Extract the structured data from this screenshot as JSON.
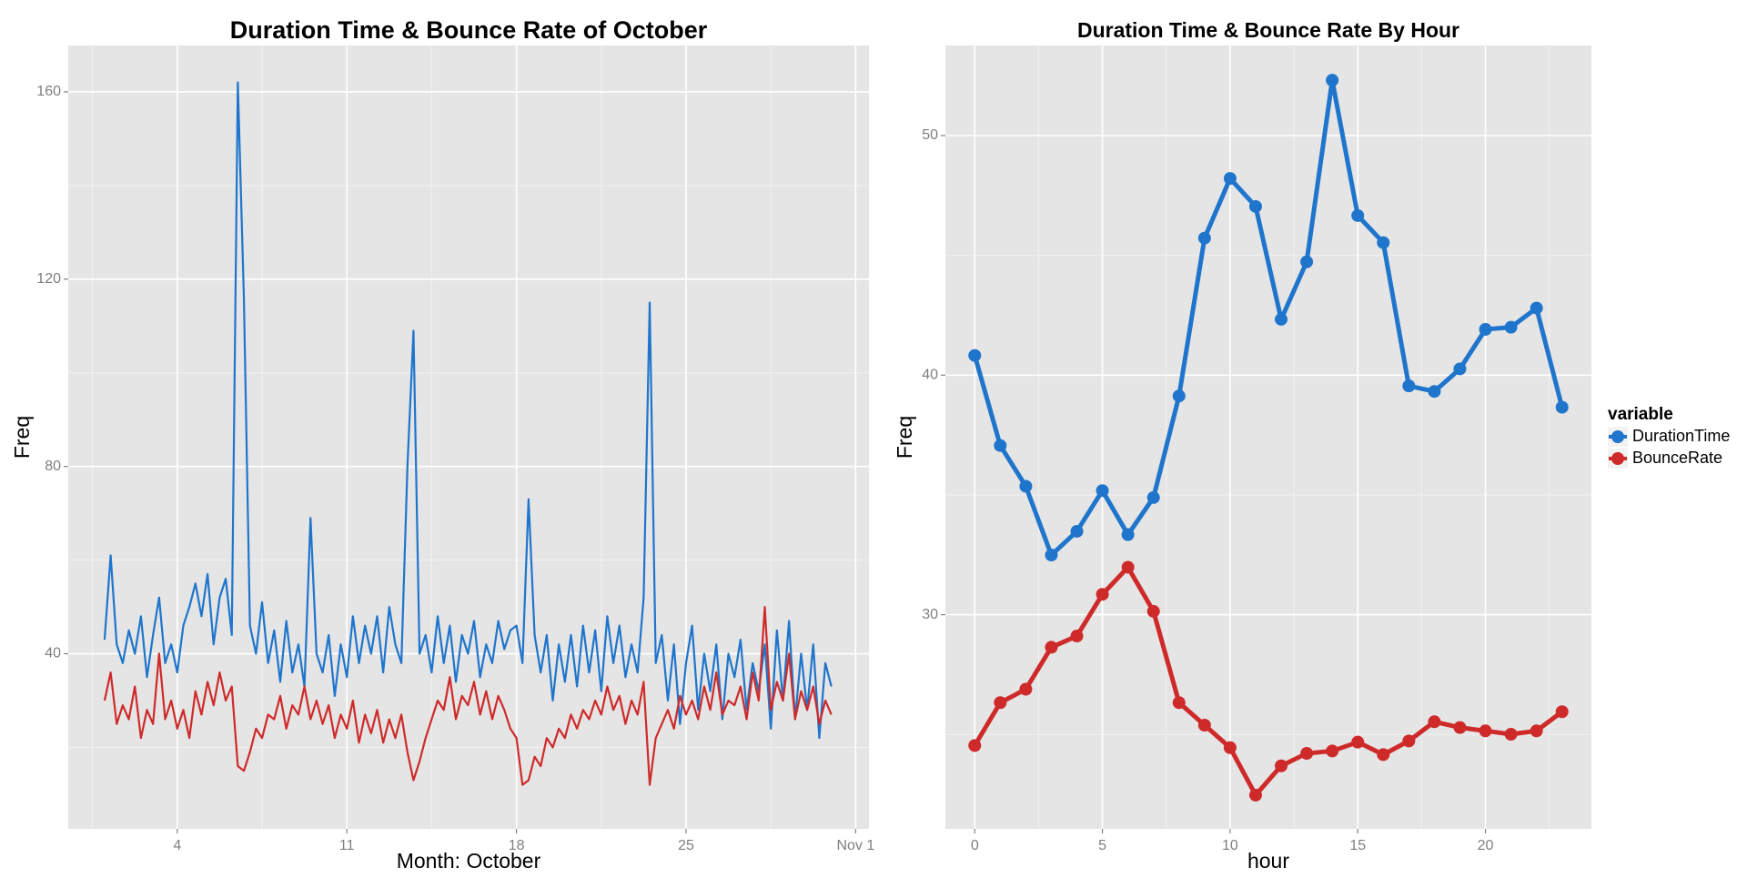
{
  "chart_data": [
    {
      "type": "line",
      "title": "Duration Time & Bounce Rate of October",
      "x_label": "Month: October",
      "y_label": "Freq",
      "xlim": [
        -0.5,
        32.55
      ],
      "xticks": [
        4,
        11,
        18,
        25,
        {
          "value": 32,
          "label": "Nov 1"
        }
      ],
      "x_minor_ticks": [
        0.5,
        7.5,
        14.5,
        21.5,
        28.5
      ],
      "ylim": [
        2.6,
        169.9
      ],
      "yticks": [
        40,
        80,
        120,
        160
      ],
      "y_minor_ticks": [
        20,
        60,
        100,
        140
      ],
      "grid": true,
      "legend": "none",
      "x": [
        1,
        1.25,
        1.5,
        1.75,
        2,
        2.25,
        2.5,
        2.75,
        3,
        3.25,
        3.5,
        3.75,
        4,
        4.25,
        4.5,
        4.75,
        5,
        5.25,
        5.5,
        5.75,
        6,
        6.25,
        6.5,
        6.75,
        7,
        7.25,
        7.5,
        7.75,
        8,
        8.25,
        8.5,
        8.75,
        9,
        9.25,
        9.5,
        9.75,
        10,
        10.25,
        10.5,
        10.75,
        11,
        11.25,
        11.5,
        11.75,
        12,
        12.25,
        12.5,
        12.75,
        13,
        13.25,
        13.5,
        13.75,
        14,
        14.25,
        14.5,
        14.75,
        15,
        15.25,
        15.5,
        15.75,
        16,
        16.25,
        16.5,
        16.75,
        17,
        17.25,
        17.5,
        17.75,
        18,
        18.25,
        18.5,
        18.75,
        19,
        19.25,
        19.5,
        19.75,
        20,
        20.25,
        20.5,
        20.75,
        21,
        21.25,
        21.5,
        21.75,
        22,
        22.25,
        22.5,
        22.75,
        23,
        23.25,
        23.5,
        23.75,
        24,
        24.25,
        24.5,
        24.75,
        25,
        25.25,
        25.5,
        25.75,
        26,
        26.25,
        26.5,
        26.75,
        27,
        27.25,
        27.5,
        27.75,
        28,
        28.25,
        28.5,
        28.75,
        29,
        29.25,
        29.5,
        29.75,
        30,
        30.25,
        30.5,
        30.75,
        31
      ],
      "series": [
        {
          "name": "DurationTime",
          "color": "#1f75cc",
          "values": [
            43,
            61,
            42,
            38,
            45,
            40,
            48,
            35,
            44,
            52,
            38,
            42,
            36,
            46,
            50,
            55,
            48,
            57,
            42,
            52,
            56,
            44,
            162,
            116,
            46,
            40,
            51,
            38,
            45,
            34,
            47,
            36,
            42,
            33,
            69,
            40,
            36,
            44,
            31,
            42,
            35,
            48,
            38,
            46,
            40,
            48,
            36,
            50,
            42,
            38,
            80,
            109,
            40,
            44,
            36,
            48,
            38,
            46,
            34,
            44,
            40,
            47,
            35,
            42,
            38,
            47,
            41,
            45,
            46,
            38,
            73,
            44,
            36,
            44,
            30,
            42,
            34,
            44,
            33,
            46,
            36,
            45,
            32,
            48,
            38,
            46,
            35,
            42,
            36,
            52,
            115,
            38,
            44,
            30,
            42,
            25,
            38,
            46,
            28,
            40,
            32,
            42,
            26,
            40,
            35,
            43,
            28,
            38,
            32,
            42,
            24,
            45,
            30,
            47,
            26,
            40,
            28,
            42,
            22,
            38,
            33
          ]
        },
        {
          "name": "BounceRate",
          "color": "#cf2a2a",
          "values": [
            30,
            36,
            25,
            29,
            26,
            33,
            22,
            28,
            25,
            40,
            26,
            30,
            24,
            28,
            22,
            32,
            27,
            34,
            29,
            36,
            30,
            33,
            16,
            15,
            19,
            24,
            22,
            27,
            26,
            31,
            24,
            29,
            27,
            33,
            26,
            30,
            25,
            29,
            22,
            27,
            24,
            30,
            21,
            27,
            23,
            28,
            21,
            26,
            22,
            27,
            19,
            13,
            17,
            22,
            26,
            30,
            28,
            35,
            26,
            31,
            29,
            34,
            27,
            32,
            26,
            31,
            28,
            24,
            22,
            12,
            13,
            18,
            16,
            22,
            20,
            24,
            22,
            27,
            24,
            28,
            26,
            30,
            27,
            33,
            28,
            31,
            25,
            30,
            27,
            34,
            12,
            22,
            25,
            28,
            24,
            31,
            27,
            30,
            26,
            33,
            28,
            36,
            27,
            30,
            29,
            33,
            26,
            36,
            30,
            50,
            28,
            34,
            30,
            40,
            26,
            32,
            28,
            33,
            25,
            30,
            27
          ]
        }
      ]
    },
    {
      "type": "line",
      "title": "Duration Time & Bounce Rate By Hour",
      "x_label": "hour",
      "y_label": "Freq",
      "xlim": [
        -1.15,
        24.15
      ],
      "xticks": [
        0,
        5,
        10,
        15,
        20
      ],
      "x_minor_ticks": [
        2.5,
        7.5,
        12.5,
        17.5,
        22.5
      ],
      "ylim": [
        21.06,
        53.76
      ],
      "yticks": [
        30,
        40,
        50
      ],
      "y_minor_ticks": [
        25,
        35,
        45
      ],
      "grid": true,
      "markers": true,
      "legend": {
        "title": "variable",
        "position": "right"
      },
      "x": [
        0,
        1,
        2,
        3,
        4,
        5,
        6,
        7,
        8,
        9,
        10,
        11,
        12,
        13,
        14,
        15,
        16,
        17,
        18,
        19,
        20,
        21,
        22,
        23
      ],
      "series": [
        {
          "name": "DurationTime",
          "color": "#1f75cc",
          "values": [
            40.82,
            37.06,
            35.36,
            32.49,
            33.48,
            35.18,
            33.34,
            34.89,
            39.13,
            45.72,
            48.21,
            47.04,
            42.33,
            44.73,
            52.31,
            46.66,
            45.53,
            39.55,
            39.32,
            40.26,
            41.91,
            42.0,
            42.8,
            38.66
          ]
        },
        {
          "name": "BounceRate",
          "color": "#cf2a2a",
          "values": [
            24.54,
            26.33,
            26.89,
            28.64,
            29.11,
            30.85,
            31.98,
            30.14,
            26.33,
            25.39,
            24.45,
            22.47,
            23.69,
            24.21,
            24.31,
            24.68,
            24.16,
            24.73,
            25.53,
            25.29,
            25.15,
            25.01,
            25.15,
            25.95
          ]
        }
      ]
    }
  ]
}
